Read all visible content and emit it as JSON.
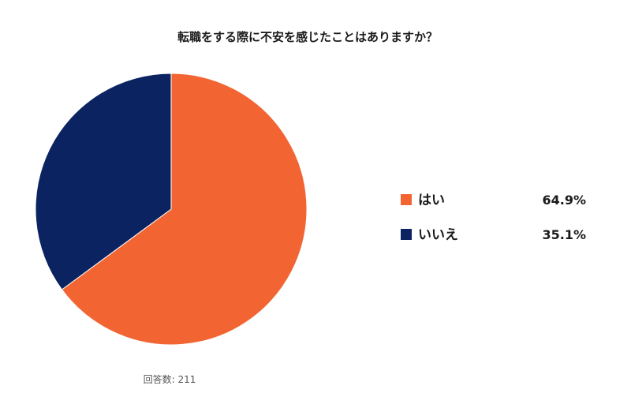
{
  "chart_data": {
    "type": "pie",
    "title": "転職をする際に不安を感じたことはありますか？",
    "categories": [
      "はい",
      "いいえ"
    ],
    "values": [
      64.9,
      35.1
    ],
    "value_labels": [
      "64.9%",
      "35.1%"
    ],
    "colors": [
      "#f26533",
      "#0b2461"
    ],
    "legend_position": "right",
    "footnote": "回答数: 211"
  }
}
